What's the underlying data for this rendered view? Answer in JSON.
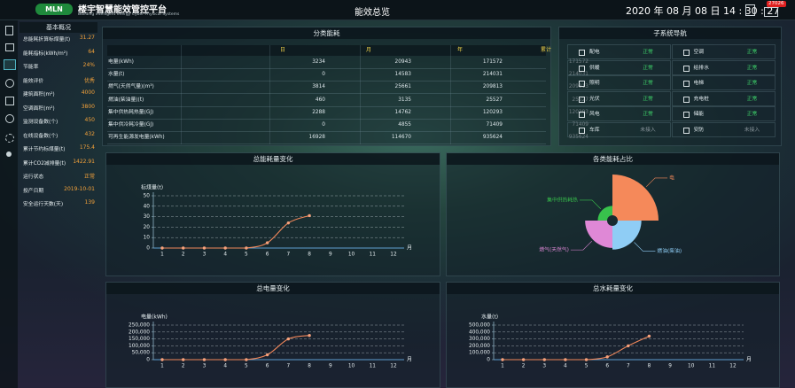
{
  "header": {
    "logo": "MLN",
    "title": "楼宇智慧能效管控平台",
    "subtitle": "Building intelligent energy Cyber-Physical Systems",
    "page": "能效总览",
    "datetime": "2020 年 08 月 08 日  14 : 30 : 27",
    "badge": "27026"
  },
  "overview": {
    "title": "基本概况",
    "value_color": "#f2a13a",
    "rows": [
      [
        "总能耗折算标煤量(t)",
        "31.27"
      ],
      [
        "能耗指标(kWh/m²)",
        "64"
      ],
      [
        "节能率",
        "24%"
      ],
      [
        "能效评价",
        "优秀"
      ],
      [
        "建筑面积(m²)",
        "4000"
      ],
      [
        "空调面积(m²)",
        "3800"
      ],
      [
        "监测设备数(个)",
        "450"
      ],
      [
        "在线设备数(个)",
        "432"
      ],
      [
        "累计节约标煤量(t)",
        "175.4"
      ],
      [
        "累计CO2减排量(t)",
        "1422.91"
      ],
      [
        "运行状态",
        "正常"
      ],
      [
        "投产日期",
        "2019-10-01"
      ],
      [
        "安全运行天数(天)",
        "139"
      ]
    ]
  },
  "energy_table": {
    "title": "分类能耗",
    "columns": [
      "日",
      "月",
      "年",
      "累计"
    ],
    "rows": [
      {
        "label": "电量(kWh)",
        "values": [
          3234,
          20943,
          171572,
          171572
        ]
      },
      {
        "label": "水量(t)",
        "values": [
          0,
          14583,
          214031,
          214031
        ]
      },
      {
        "label": "燃气(天然气量)(m³)",
        "values": [
          3814,
          25661,
          209813,
          209813
        ]
      },
      {
        "label": "燃油(柴油量)(t)",
        "values": [
          460,
          3135,
          25527,
          25527
        ]
      },
      {
        "label": "集中供热耗热量(GJ)",
        "values": [
          2288,
          14762,
          120293,
          120293
        ]
      },
      {
        "label": "集中供冷耗冷量(GJ)",
        "values": [
          0,
          4855,
          71409,
          71409
        ]
      },
      {
        "label": "可再生能源发电量(kWh)",
        "values": [
          16928,
          114670,
          935624,
          935624
        ]
      }
    ]
  },
  "subsystems": {
    "title": "子系统导航",
    "items": [
      {
        "name": "配电",
        "status": "正常",
        "color": "#3fd26a"
      },
      {
        "name": "空调",
        "status": "正常",
        "color": "#3fd26a"
      },
      {
        "name": "供暖",
        "status": "正常",
        "color": "#3fd26a"
      },
      {
        "name": "给排水",
        "status": "正常",
        "color": "#3fd26a"
      },
      {
        "name": "照明",
        "status": "正常",
        "color": "#3fd26a"
      },
      {
        "name": "电梯",
        "status": "正常",
        "color": "#3fd26a"
      },
      {
        "name": "光伏",
        "status": "正常",
        "color": "#3fd26a"
      },
      {
        "name": "充电桩",
        "status": "正常",
        "color": "#3fd26a"
      },
      {
        "name": "风电",
        "status": "正常",
        "color": "#3fd26a"
      },
      {
        "name": "储能",
        "status": "正常",
        "color": "#3fd26a"
      },
      {
        "name": "车库",
        "status": "未接入",
        "color": "#8a959c"
      },
      {
        "name": "安防",
        "status": "未接入",
        "color": "#8a959c"
      }
    ]
  },
  "chart_data": [
    {
      "type": "line",
      "title": "总能耗量变化",
      "y_label": "标煤量(t)",
      "x_unit": "月",
      "categories": [
        1,
        2,
        3,
        4,
        5,
        6,
        7,
        8,
        9,
        10,
        11,
        12
      ],
      "values": [
        0,
        0,
        0,
        0,
        0,
        5,
        24,
        31,
        null,
        null,
        null,
        null
      ],
      "color": "#f0875a",
      "ylim": [
        0,
        50
      ],
      "yticks": [
        0,
        10,
        20,
        30,
        40,
        50
      ],
      "grid": true
    },
    {
      "type": "rose",
      "title": "各类能耗占比",
      "categories": [
        "电",
        "燃油(柴油)",
        "燃气(天然气)",
        "集中供热耗热"
      ],
      "values": [
        100,
        58,
        54,
        23
      ],
      "colors": [
        "#f5895a",
        "#8fcdf5",
        "#df88d6",
        "#38c24c"
      ]
    },
    {
      "type": "line",
      "title": "总电量变化",
      "y_label": "电量(kWh)",
      "x_unit": "月",
      "categories": [
        1,
        2,
        3,
        4,
        5,
        6,
        7,
        8,
        9,
        10,
        11,
        12
      ],
      "values": [
        0,
        0,
        0,
        0,
        0,
        35000,
        150000,
        175000,
        null,
        null,
        null,
        null
      ],
      "color": "#f0875a",
      "ylim": [
        0,
        250000
      ],
      "yticks": [
        0,
        {
          "value": 50000,
          "label": "50,000"
        },
        {
          "value": 100000,
          "label": "100,000"
        },
        {
          "value": 150000,
          "label": "150,000"
        },
        {
          "value": 200000,
          "label": "200,000"
        },
        {
          "value": 250000,
          "label": "250,000"
        }
      ],
      "grid": true
    },
    {
      "type": "line",
      "title": "总水耗量变化",
      "y_label": "水量(t)",
      "x_unit": "月",
      "categories": [
        1,
        2,
        3,
        4,
        5,
        6,
        7,
        8,
        9,
        10,
        11,
        12
      ],
      "values": [
        0,
        0,
        0,
        0,
        0,
        40000,
        200000,
        340000,
        null,
        null,
        null,
        null
      ],
      "color": "#f0875a",
      "ylim": [
        0,
        500000
      ],
      "yticks": [
        0,
        {
          "value": 100000,
          "label": "100,000"
        },
        {
          "value": 200000,
          "label": "200,000"
        },
        {
          "value": 300000,
          "label": "300,000"
        },
        {
          "value": 400000,
          "label": "400,000"
        },
        {
          "value": 500000,
          "label": "500,000"
        }
      ],
      "grid": true
    }
  ]
}
